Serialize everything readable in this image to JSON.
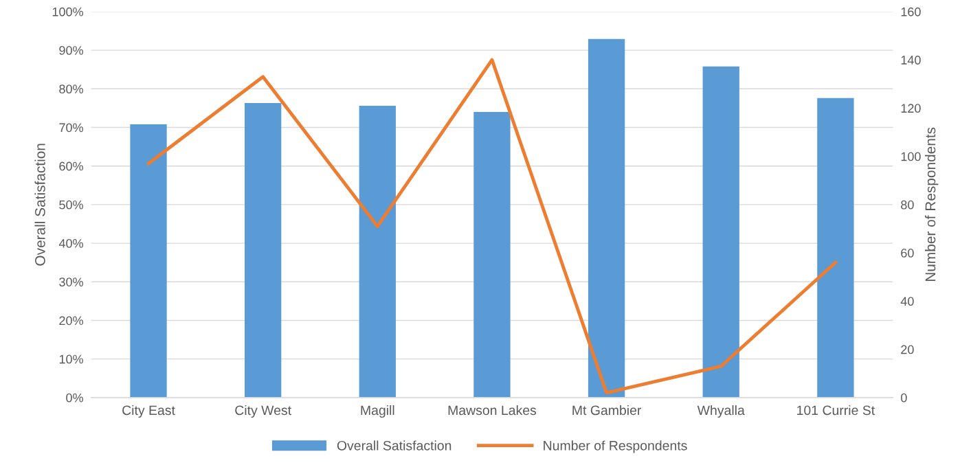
{
  "chart_data": {
    "type": "bar",
    "categories": [
      "City East",
      "City West",
      "Magill",
      "Mawson Lakes",
      "Mt Gambier",
      "Whyalla",
      "101 Currie St"
    ],
    "ylabel": "Overall Satisfaction",
    "y2label": "Number of Respondents",
    "series": [
      {
        "name": "Overall Satisfaction",
        "color": "#5b9bd5",
        "values": [
          70.8,
          76.3,
          75.6,
          74.0,
          92.9,
          85.8,
          77.6
        ]
      },
      {
        "name": "Number of Respondents",
        "type": "line",
        "axis": "y2",
        "color": "#ed7d31",
        "values": [
          97,
          133,
          71,
          140,
          2,
          13,
          56
        ]
      }
    ],
    "ylim": [
      0,
      100
    ],
    "yticks": [
      {
        "value": 0,
        "label": "0%"
      },
      {
        "value": 10,
        "label": "10%"
      },
      {
        "value": 20,
        "label": "20%"
      },
      {
        "value": 30,
        "label": "30%"
      },
      {
        "value": 40,
        "label": "40%"
      },
      {
        "value": 50,
        "label": "50%"
      },
      {
        "value": 60,
        "label": "60%"
      },
      {
        "value": 70,
        "label": "70%"
      },
      {
        "value": 80,
        "label": "80%"
      },
      {
        "value": 90,
        "label": "90%"
      },
      {
        "value": 100,
        "label": "100%"
      }
    ],
    "y2lim": [
      0,
      160
    ],
    "y2ticks": [
      0,
      20,
      40,
      60,
      80,
      100,
      120,
      140,
      160
    ],
    "grid": "y",
    "legend": "bottom",
    "marker": "none",
    "line_style": "solid"
  }
}
